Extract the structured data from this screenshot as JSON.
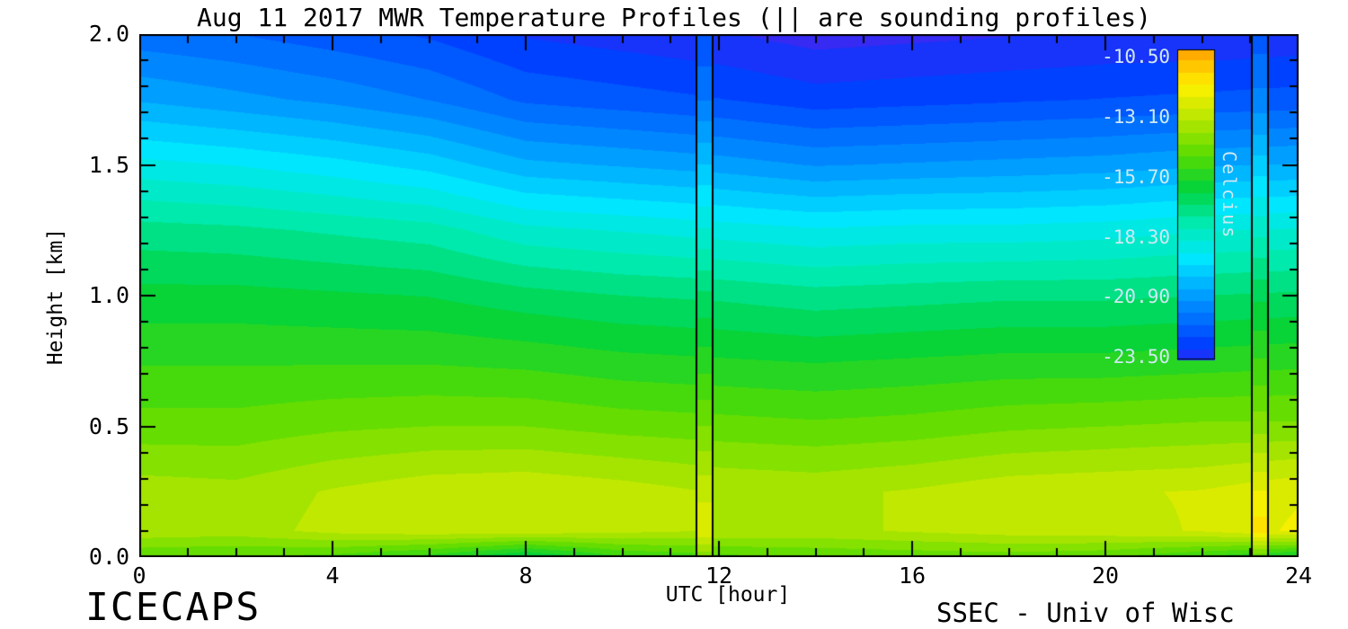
{
  "figure": {
    "background": "#ffffff",
    "footer_left": "ICECAPS",
    "footer_right": "SSEC - Univ of Wisc"
  },
  "chart_data": {
    "type": "heatmap",
    "title": "Aug 11 2017 MWR Temperature Profiles (|| are sounding profiles)",
    "xlabel": "UTC [hour]",
    "ylabel": "Height [km]",
    "x_range": [
      0,
      24
    ],
    "y_range": [
      0.0,
      2.0
    ],
    "x_minor_step": 1,
    "y_minor_step": 0.1,
    "x_ticks": [
      {
        "value": 0,
        "label": "0"
      },
      {
        "value": 4,
        "label": "4"
      },
      {
        "value": 8,
        "label": "8"
      },
      {
        "value": 12,
        "label": "12"
      },
      {
        "value": 16,
        "label": "16"
      },
      {
        "value": 20,
        "label": "20"
      },
      {
        "value": 24,
        "label": "24"
      }
    ],
    "y_ticks": [
      {
        "value": 2.0,
        "label": "2.0"
      },
      {
        "value": 1.5,
        "label": "1.5"
      },
      {
        "value": 1.0,
        "label": "1.0"
      },
      {
        "value": 0.5,
        "label": "0.5"
      },
      {
        "value": 0.0,
        "label": "0.0"
      }
    ],
    "colorbar": {
      "label": "Celcius",
      "tick_labels": [
        "-10.50",
        "-13.10",
        "-15.70",
        "-18.30",
        "-20.90",
        "-23.50"
      ],
      "tick_values": [
        -10.5,
        -13.1,
        -15.7,
        -18.3,
        -20.9,
        -23.5
      ],
      "top_value": -10.2,
      "bottom_value": -23.6,
      "text_color": "#cfe9f2"
    },
    "colormap": {
      "range": [
        -24.5,
        -9.5
      ],
      "band_step": 0.52,
      "stops": [
        {
          "u": 0.0,
          "color": "#5a1eeb"
        },
        {
          "u": 0.1,
          "color": "#003cff"
        },
        {
          "u": 0.25,
          "color": "#00a0ff"
        },
        {
          "u": 0.35,
          "color": "#00e6ff"
        },
        {
          "u": 0.45,
          "color": "#00ebb4"
        },
        {
          "u": 0.55,
          "color": "#00d23c"
        },
        {
          "u": 0.65,
          "color": "#5adc00"
        },
        {
          "u": 0.75,
          "color": "#b4e600"
        },
        {
          "u": 0.85,
          "color": "#fff000"
        },
        {
          "u": 0.93,
          "color": "#ffb400"
        },
        {
          "u": 1.0,
          "color": "#ff7800"
        }
      ]
    },
    "grid": {
      "hours": [
        0,
        2,
        4,
        6,
        8,
        10,
        12,
        14,
        16,
        18,
        20,
        22,
        24
      ],
      "heights_km": [
        0.0,
        0.1,
        0.25,
        0.5,
        0.75,
        1.0,
        1.25,
        1.5,
        1.75,
        2.0
      ],
      "temps_c": [
        [
          -14.8,
          -14.9,
          -15.0,
          -15.6,
          -16.6,
          -15.4,
          -15.0,
          -14.8,
          -14.7,
          -14.6,
          -14.8,
          -15.4,
          -16.2
        ],
        [
          -13.4,
          -13.5,
          -13.1,
          -12.9,
          -12.9,
          -13.1,
          -13.3,
          -13.4,
          -13.2,
          -13.0,
          -12.9,
          -12.7,
          -12.1
        ],
        [
          -13.5,
          -13.6,
          -13.2,
          -12.9,
          -12.8,
          -13.0,
          -13.3,
          -13.4,
          -13.2,
          -12.9,
          -12.8,
          -12.7,
          -12.3
        ],
        [
          -14.6,
          -14.6,
          -14.4,
          -14.3,
          -14.3,
          -14.5,
          -14.6,
          -14.7,
          -14.6,
          -14.4,
          -14.3,
          -14.2,
          -14.2
        ],
        [
          -15.4,
          -15.4,
          -15.4,
          -15.4,
          -15.5,
          -15.7,
          -15.8,
          -15.9,
          -15.8,
          -15.7,
          -15.7,
          -15.6,
          -15.5
        ],
        [
          -16.2,
          -16.2,
          -16.3,
          -16.4,
          -16.7,
          -16.9,
          -17.0,
          -17.2,
          -17.1,
          -17.0,
          -17.0,
          -16.9,
          -16.8
        ],
        [
          -17.2,
          -17.3,
          -17.5,
          -17.7,
          -18.3,
          -18.5,
          -18.7,
          -18.9,
          -18.8,
          -18.8,
          -18.7,
          -18.5,
          -18.4
        ],
        [
          -18.8,
          -19.0,
          -19.3,
          -19.7,
          -20.4,
          -20.6,
          -20.8,
          -21.1,
          -21.0,
          -20.9,
          -20.8,
          -20.6,
          -20.5
        ],
        [
          -20.6,
          -20.9,
          -21.2,
          -21.6,
          -22.2,
          -22.4,
          -22.6,
          -22.9,
          -22.8,
          -22.7,
          -22.6,
          -22.5,
          -22.4
        ],
        [
          -21.9,
          -22.1,
          -22.4,
          -22.7,
          -23.2,
          -23.4,
          -23.6,
          -23.9,
          -23.8,
          -23.7,
          -23.6,
          -23.6,
          -23.5
        ]
      ]
    },
    "soundings": [
      {
        "time_utc": 11.7,
        "temps_c": [
          -14.2,
          -12.3,
          -12.9,
          -14.3,
          -15.6,
          -16.8,
          -18.4,
          -20.0,
          -21.6,
          -22.6
        ]
      },
      {
        "time_utc": 23.2,
        "temps_c": [
          -14.8,
          -11.4,
          -12.2,
          -14.0,
          -15.3,
          -16.5,
          -18.1,
          -19.8,
          -21.4,
          -22.4
        ]
      }
    ]
  }
}
